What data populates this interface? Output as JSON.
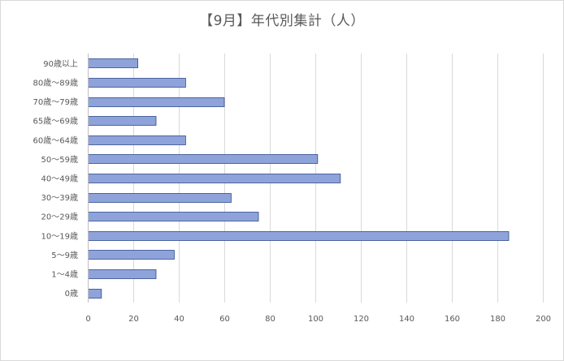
{
  "chart_data": {
    "type": "bar",
    "orientation": "horizontal",
    "title": "【9月】年代別集計（人）",
    "categories": [
      "0歳",
      "1〜4歳",
      "5〜9歳",
      "10〜19歳",
      "20〜29歳",
      "30〜39歳",
      "40〜49歳",
      "50〜59歳",
      "60歳〜64歳",
      "65歳〜69歳",
      "70歳〜79歳",
      "80歳〜89歳",
      "90歳以上"
    ],
    "values": [
      6,
      30,
      38,
      185,
      75,
      63,
      111,
      101,
      43,
      30,
      60,
      43,
      22
    ],
    "xlim": [
      0,
      200
    ],
    "xticks": [
      0,
      20,
      40,
      60,
      80,
      100,
      120,
      140,
      160,
      180,
      200
    ],
    "grid": true,
    "legend": false,
    "bar_color": "#8FA3DB",
    "bar_edge_color": "#2F4A8A"
  }
}
